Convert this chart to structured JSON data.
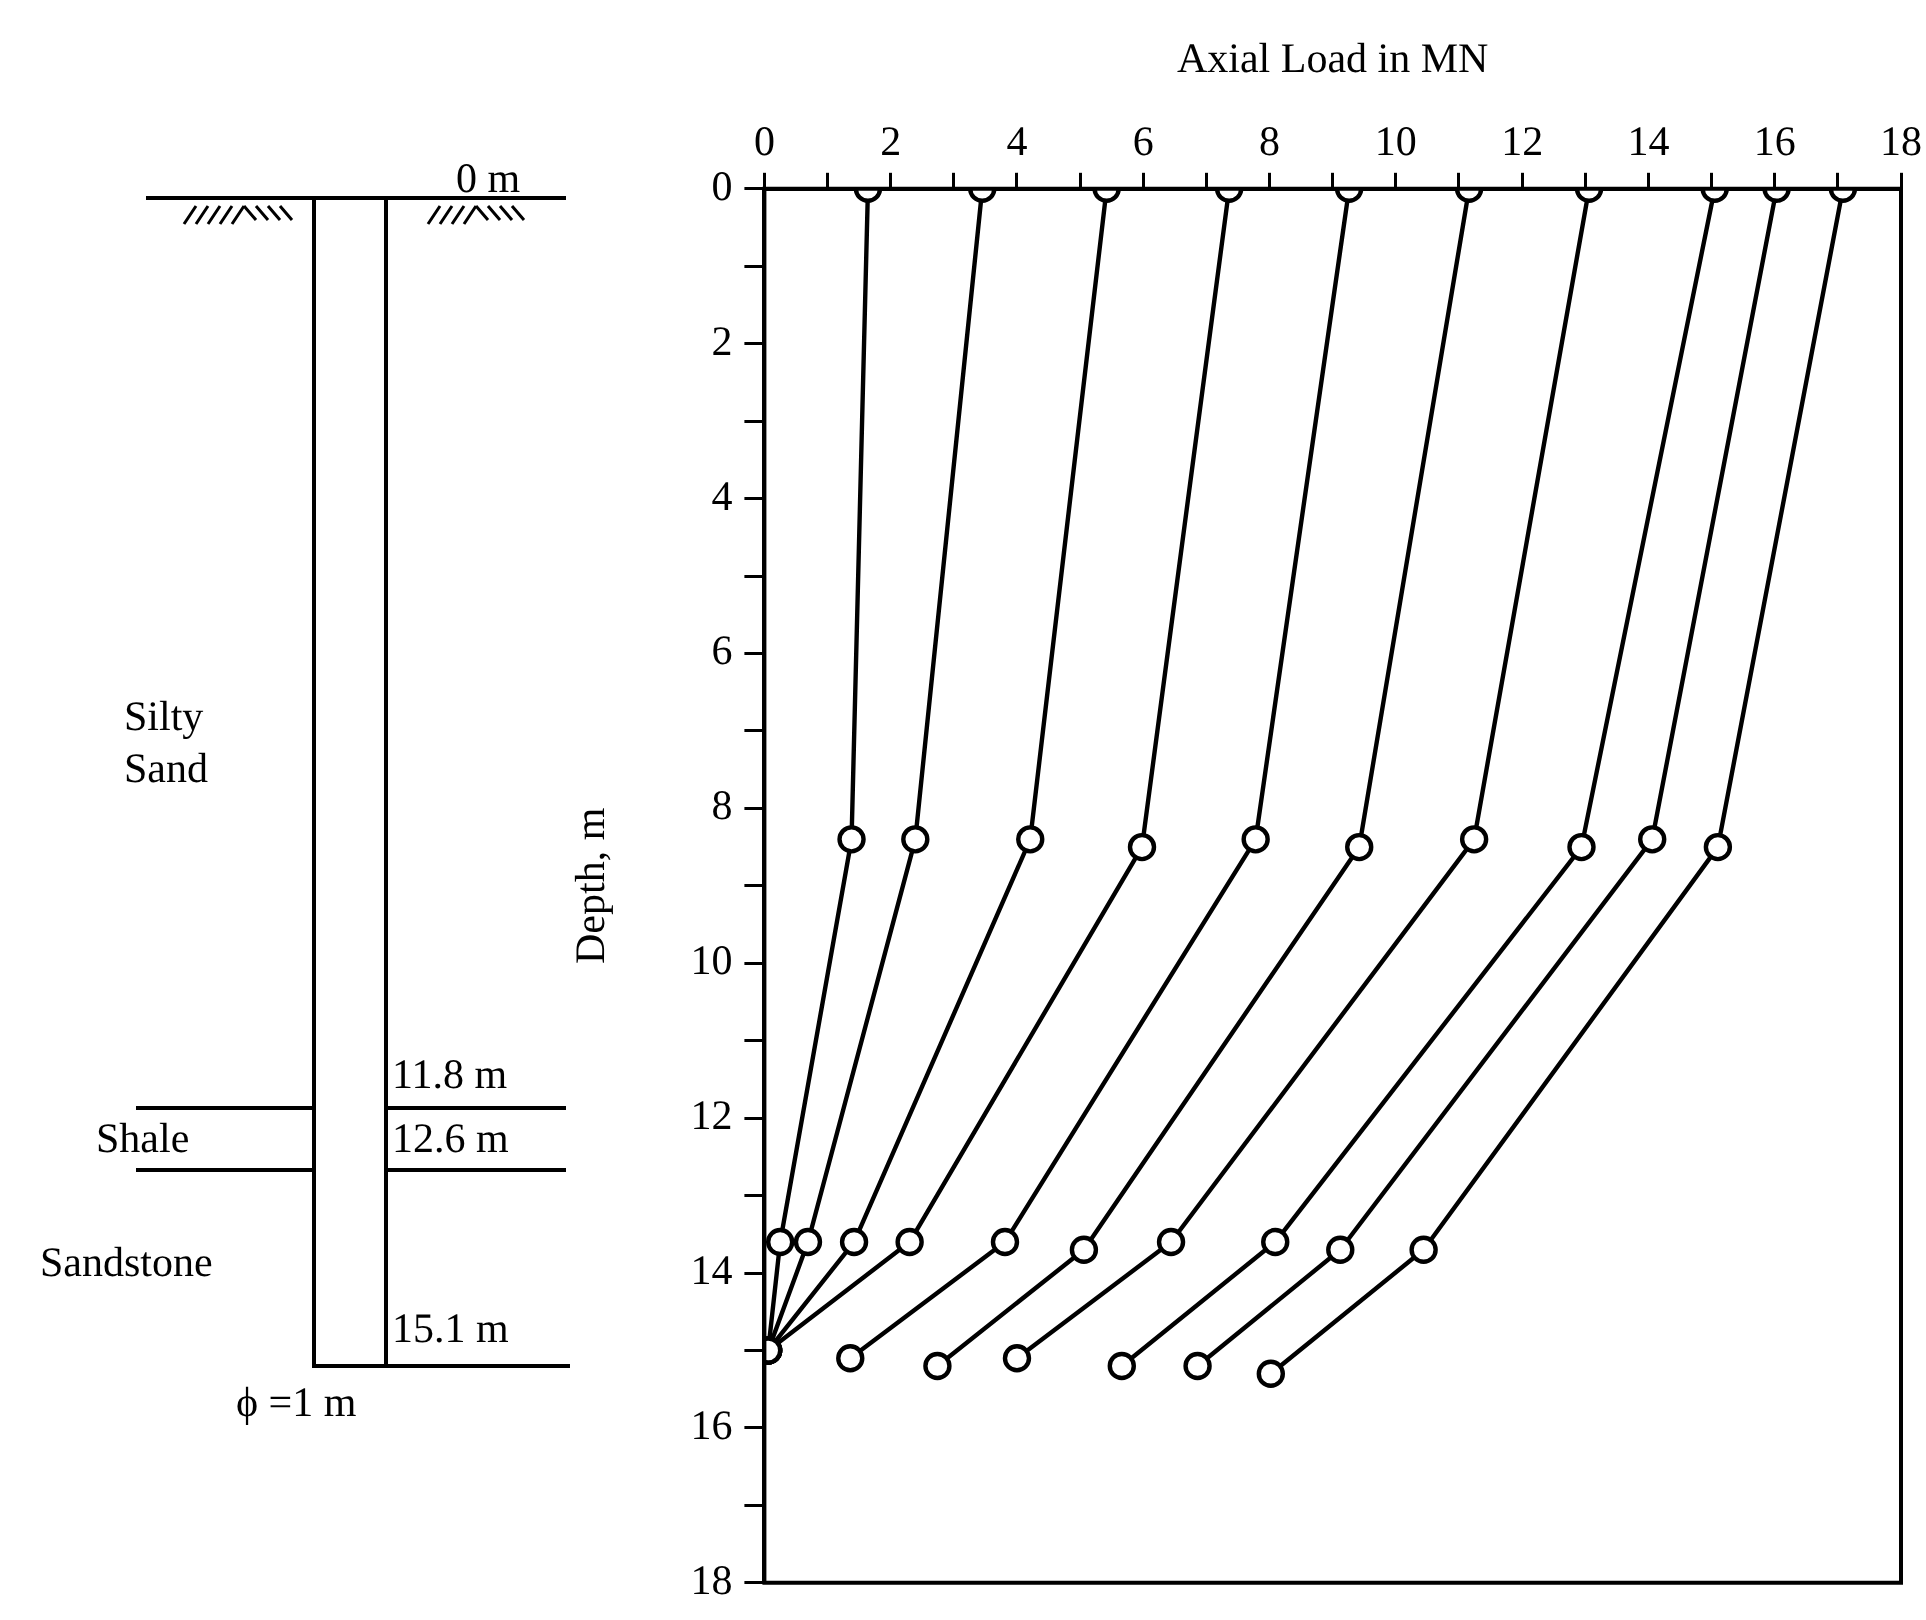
{
  "chart_data": {
    "type": "line",
    "xlabel": "Axial Load in MN",
    "ylabel": "Depth, m",
    "xlim": [
      0,
      18
    ],
    "xticks": [
      0,
      {
        "value": 1,
        "label": null
      },
      2,
      {
        "value": 3,
        "label": null
      },
      4,
      {
        "value": 5,
        "label": null
      },
      6,
      {
        "value": 7,
        "label": null
      },
      8,
      {
        "value": 9,
        "label": null
      },
      10,
      {
        "value": 11,
        "label": null
      },
      12,
      {
        "value": 13,
        "label": null
      },
      14,
      {
        "value": 15,
        "label": null
      },
      16,
      {
        "value": 17,
        "label": null
      },
      18
    ],
    "ylim": [
      18,
      0
    ],
    "yticks": [
      0,
      {
        "value": 1,
        "label": null
      },
      2,
      {
        "value": 3,
        "label": null
      },
      4,
      {
        "value": 5,
        "label": null
      },
      6,
      {
        "value": 7,
        "label": null
      },
      8,
      {
        "value": 9,
        "label": null
      },
      10,
      {
        "value": 11,
        "label": null
      },
      12,
      {
        "value": 13,
        "label": null
      },
      14,
      {
        "value": 15,
        "label": null
      },
      16,
      {
        "value": 17,
        "label": null
      },
      18
    ],
    "marker": "circle",
    "line_style": "solid",
    "grid": false,
    "legend": false,
    "series": [
      {
        "color": "#000000",
        "x": [
          1.64,
          1.38,
          0.25,
          0.06
        ],
        "values": [
          0,
          8.4,
          13.6,
          15.0
        ]
      },
      {
        "color": "#000000",
        "x": [
          3.45,
          2.39,
          0.69,
          0.06
        ],
        "values": [
          0,
          8.4,
          13.6,
          15.0
        ]
      },
      {
        "color": "#000000",
        "x": [
          5.42,
          4.21,
          1.42,
          0.06
        ],
        "values": [
          0,
          8.4,
          13.6,
          15.0
        ]
      },
      {
        "color": "#000000",
        "x": [
          7.36,
          5.98,
          2.3,
          0.06
        ],
        "values": [
          0,
          8.5,
          13.6,
          15.0
        ]
      },
      {
        "color": "#000000",
        "x": [
          9.26,
          7.78,
          3.81,
          1.36
        ],
        "values": [
          0,
          8.4,
          13.6,
          15.1
        ]
      },
      {
        "color": "#000000",
        "x": [
          11.16,
          9.42,
          5.06,
          2.74
        ],
        "values": [
          0,
          8.5,
          13.7,
          15.2
        ]
      },
      {
        "color": "#000000",
        "x": [
          13.06,
          11.24,
          6.44,
          4.0
        ],
        "values": [
          0,
          8.4,
          13.6,
          15.1
        ]
      },
      {
        "color": "#000000",
        "x": [
          15.05,
          12.94,
          8.09,
          5.66
        ],
        "values": [
          0,
          8.5,
          13.6,
          15.2
        ]
      },
      {
        "color": "#000000",
        "x": [
          16.03,
          14.06,
          9.12,
          6.86
        ],
        "values": [
          0,
          8.4,
          13.7,
          15.2
        ]
      },
      {
        "color": "#000000",
        "x": [
          17.08,
          15.1,
          10.44,
          8.02
        ],
        "values": [
          0,
          8.5,
          13.7,
          15.3
        ]
      }
    ],
    "annotations": [
      "0 m",
      "11.8 m",
      "12.6 m",
      "15.1 m",
      "Silty Sand",
      "Shale",
      "Sandstone",
      "ϕ =1 m"
    ]
  }
}
